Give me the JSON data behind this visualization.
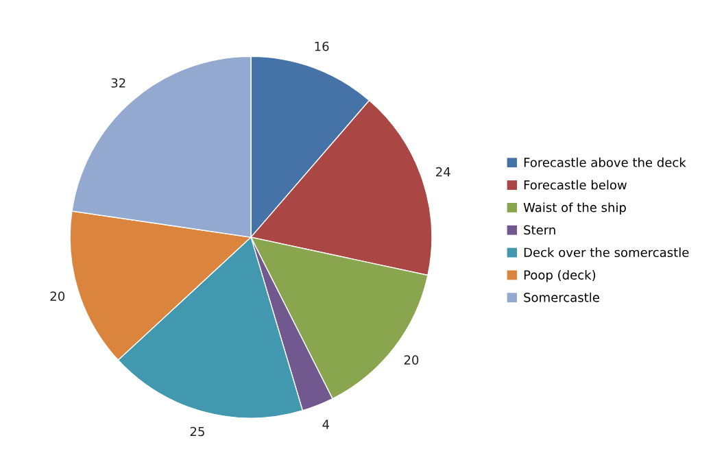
{
  "chart_data": {
    "type": "pie",
    "categories": [
      "Forecastle above the deck",
      "Forecastle below",
      "Waist of the ship",
      "Stern",
      "Deck over the somercastle",
      "Poop (deck)",
      "Somercastle"
    ],
    "values": [
      16,
      24,
      20,
      4,
      25,
      20,
      32
    ],
    "colors": [
      "#4572a7",
      "#aa4643",
      "#89a54e",
      "#71588f",
      "#4198af",
      "#db843d",
      "#93a9cf"
    ],
    "data_labels": true,
    "legend": "right"
  }
}
